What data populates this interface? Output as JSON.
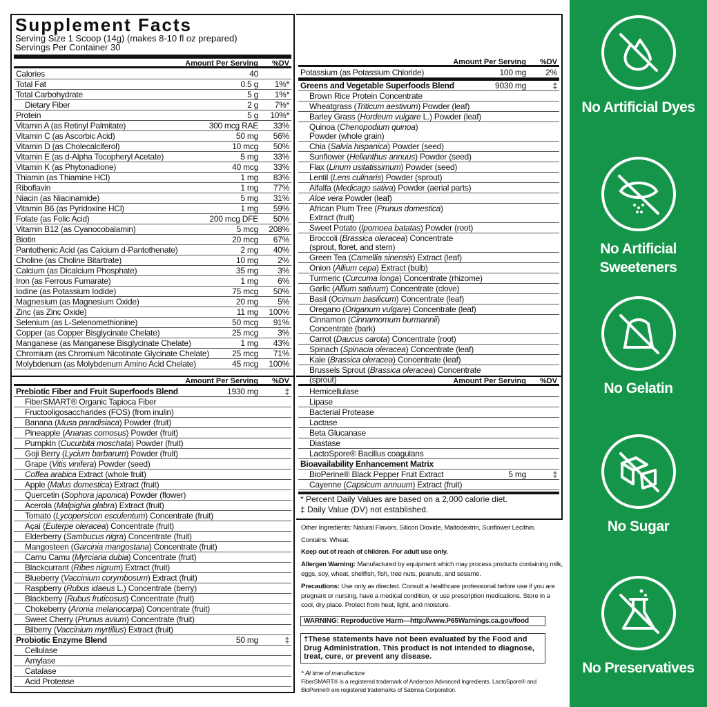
{
  "title": "Supplement Facts",
  "serving_size": "Serving Size 1 Scoop (14g) (makes 8-10 fl oz prepared)",
  "servings_per_container": "Servings Per Container 30",
  "col_amount": "Amount Per Serving",
  "col_dv": "%DV",
  "nutrients": [
    {
      "pre": "Calories",
      "amt": "40",
      "dv": ""
    },
    {
      "pre": "Total Fat",
      "amt": "0.5 g",
      "dv": "1%*"
    },
    {
      "pre": "Total Carbohydrate",
      "amt": "5 g",
      "dv": "1%*"
    },
    {
      "pre": "Dietary Fiber",
      "amt": "2 g",
      "dv": "7%*",
      "ind": 1
    },
    {
      "pre": "Protein",
      "amt": "5 g",
      "dv": "10%*"
    },
    {
      "pre": "Vitamin A (as Retinyl Palmitate)",
      "amt": "300 mcg RAE",
      "dv": "33%"
    },
    {
      "pre": "Vitamin C (as Ascorbic Acid)",
      "amt": "50 mg",
      "dv": "56%"
    },
    {
      "pre": "Vitamin D (as Cholecalciferol)",
      "amt": "10 mcg",
      "dv": "50%"
    },
    {
      "pre": "Vitamin E (as d-Alpha Tocopheryl Acetate)",
      "amt": "5 mg",
      "dv": "33%"
    },
    {
      "pre": "Vitamin K (as Phytonadione)",
      "amt": "40 mcg",
      "dv": "33%"
    },
    {
      "pre": "Thiamin (as Thiamine HCl)",
      "amt": "1 mg",
      "dv": "83%"
    },
    {
      "pre": "Riboflavin",
      "amt": "1 mg",
      "dv": "77%"
    },
    {
      "pre": "Niacin (as Niacinamide)",
      "amt": "5 mg",
      "dv": "31%"
    },
    {
      "pre": "Vitamin B6 (as Pyridoxine HCl)",
      "amt": "1 mg",
      "dv": "59%"
    },
    {
      "pre": "Folate (as Folic Acid)",
      "amt": "200 mcg DFE",
      "dv": "50%"
    },
    {
      "pre": "Vitamin B12 (as Cyanocobalamin)",
      "amt": "5 mcg",
      "dv": "208%"
    },
    {
      "pre": "Biotin",
      "amt": "20 mcg",
      "dv": "67%"
    },
    {
      "pre": "Pantothenic Acid (as Calcium d-Pantothenate)",
      "amt": "2 mg",
      "dv": "40%"
    },
    {
      "pre": "Choline (as Choline Bitartrate)",
      "amt": "10 mg",
      "dv": "2%"
    },
    {
      "pre": "Calcium (as Dicalcium Phosphate)",
      "amt": "35 mg",
      "dv": "3%"
    },
    {
      "pre": "Iron (as Ferrous Fumarate)",
      "amt": "1 mg",
      "dv": "6%"
    },
    {
      "pre": "Iodine (as Potassium Iodide)",
      "amt": "75 mcg",
      "dv": "50%"
    },
    {
      "pre": "Magnesium (as Magnesium Oxide)",
      "amt": "20 mg",
      "dv": "5%"
    },
    {
      "pre": "Zinc (as Zinc Oxide)",
      "amt": "11 mg",
      "dv": "100%"
    },
    {
      "pre": "Selenium (as L-Selenomethionine)",
      "amt": "50 mcg",
      "dv": "91%"
    },
    {
      "pre": "Copper (as Copper Bisglycinate Chelate)",
      "amt": "25 mcg",
      "dv": "3%"
    },
    {
      "pre": "Manganese (as Manganese Bisglycinate Chelate)",
      "amt": "1 mg",
      "dv": "43%"
    },
    {
      "pre": "Chromium (as Chromium Nicotinate Glycinate Chelate)",
      "amt": "25 mcg",
      "dv": "71%"
    },
    {
      "pre": "Molybdenum (as Molybdenum Amino Acid Chelate)",
      "amt": "45 mcg",
      "dv": "100%"
    }
  ],
  "greens": [
    {
      "pre": "Potassium (as Potassium Chloride)",
      "amt": "100 mg",
      "dv": "2%"
    },
    {
      "pre": "Greens and Vegetable Superfoods Blend",
      "amt": "9030 mg",
      "dv": "‡",
      "b": 1,
      "thick": 1
    },
    {
      "pre": "Brown Rice Protein Concentrate",
      "ind": 1
    },
    {
      "pre": "Wheatgrass (",
      "it": "Triticum aestivum",
      "post": ") Powder (leaf)",
      "ind": 1
    },
    {
      "pre": "Barley Grass (",
      "it": "Hordeum vulgare",
      "post": " L.) Powder (leaf)",
      "ind": 1
    },
    {
      "pre": "Quinoa (",
      "it": "Chenopodium quinoa",
      "post": ")\nPowder (whole grain)",
      "ind": 1,
      "two": 1
    },
    {
      "pre": "Chia (",
      "it": "Salvia hispanica",
      "post": ") Powder (seed)",
      "ind": 1
    },
    {
      "pre": "Sunflower (",
      "it": "Helianthus annuus",
      "post": ") Powder (seed)",
      "ind": 1
    },
    {
      "pre": "Flax (",
      "it": "Linum usitatissimum",
      "post": ") Powder (seed)",
      "ind": 1
    },
    {
      "pre": "Lentil (",
      "it": "Lens culinaris",
      "post": ") Powder (sprout)",
      "ind": 1
    },
    {
      "pre": "Alfalfa (",
      "it": "Medicago sativa",
      "post": ") Powder (aerial parts)",
      "ind": 1
    },
    {
      "pre": "",
      "it": "Aloe vera",
      "post": " Powder (leaf)",
      "ind": 1
    },
    {
      "pre": "African Plum Tree (",
      "it": "Prunus domestica",
      "post": ")\nExtract (fruit)",
      "ind": 1,
      "two": 1
    },
    {
      "pre": "Sweet Potato (",
      "it": "Ipomoea batatas",
      "post": ") Powder (root)",
      "ind": 1
    },
    {
      "pre": "Broccoli (",
      "it": "Brassica oleracea",
      "post": ") Concentrate\n(sprout, floret, and stem)",
      "ind": 1,
      "two": 1
    },
    {
      "pre": "Green Tea (",
      "it": "Camellia sinensis",
      "post": ") Extract (leaf)",
      "ind": 1
    },
    {
      "pre": "Onion (",
      "it": "Allium cepa",
      "post": ") Extract (bulb)",
      "ind": 1
    },
    {
      "pre": "Turmeric (",
      "it": "Curcuma longa",
      "post": ") Concentrate (rhizome)",
      "ind": 1
    },
    {
      "pre": "Garlic (",
      "it": "Allium sativum",
      "post": ") Concentrate (clove)",
      "ind": 1
    },
    {
      "pre": "Basil (",
      "it": "Ocimum basilicum",
      "post": ") Concentrate (leaf)",
      "ind": 1
    },
    {
      "pre": "Oregano (",
      "it": "Origanum vulgare",
      "post": ") Concentrate (leaf)",
      "ind": 1
    },
    {
      "pre": "Cinnamon (",
      "it": "Cinnamomum burmannii",
      "post": ")\nConcentrate (bark)",
      "ind": 1,
      "two": 1
    },
    {
      "pre": "Carrot (",
      "it": "Daucus carota",
      "post": ") Concentrate (root)",
      "ind": 1
    },
    {
      "pre": "Spinach (",
      "it": "Spinacia oleracea",
      "post": ") Concentrate (leaf)",
      "ind": 1
    },
    {
      "pre": "Kale (",
      "it": "Brassica oleracea",
      "post": ") Concentrate (leaf)",
      "ind": 1
    },
    {
      "pre": "Brussels Sprout (",
      "it": "Brassica oleracea",
      "post": ") Concentrate (sprout)",
      "ind": 1
    }
  ],
  "prebiotic": [
    {
      "pre": "Prebiotic Fiber and Fruit Superfoods Blend",
      "amt": "1930 mg",
      "dv": "‡",
      "b": 1
    },
    {
      "pre": "FiberSMART® Organic Tapioca Fiber",
      "ind": 1
    },
    {
      "pre": "Fructooligosaccharides (FOS) (from inulin)",
      "ind": 1
    },
    {
      "pre": "Banana (",
      "it": "Musa paradisiaca",
      "post": ") Powder (fruit)",
      "ind": 1
    },
    {
      "pre": "Pineapple (",
      "it": "Ananas comosus",
      "post": ") Powder (fruit)",
      "ind": 1
    },
    {
      "pre": "Pumpkin (",
      "it": "Cucurbita moschata",
      "post": ") Powder (fruit)",
      "ind": 1
    },
    {
      "pre": "Goji Berry (",
      "it": "Lycium barbarum",
      "post": ") Powder (fruit)",
      "ind": 1
    },
    {
      "pre": "Grape (",
      "it": "Vitis vinifera",
      "post": ") Powder (seed)",
      "ind": 1
    },
    {
      "pre": "",
      "it": "Coffea arabica",
      "post": " Extract (whole fruit)",
      "ind": 1
    },
    {
      "pre": "Apple (",
      "it": "Malus domestica",
      "post": ") Extract (fruit)",
      "ind": 1
    },
    {
      "pre": "Quercetin (",
      "it": "Sophora japonica",
      "post": ") Powder (flower)",
      "ind": 1
    },
    {
      "pre": "Acerola (",
      "it": "Malpighia glabra",
      "post": ") Extract (fruit)",
      "ind": 1
    },
    {
      "pre": "Tomato (",
      "it": "Lycopersicon esculentum",
      "post": ") Concentrate (fruit)",
      "ind": 1
    },
    {
      "pre": "Açaí (",
      "it": "Euterpe oleracea",
      "post": ") Concentrate (fruit)",
      "ind": 1
    },
    {
      "pre": "Elderberry (",
      "it": "Sambucus nigra",
      "post": ") Concentrate (fruit)",
      "ind": 1
    },
    {
      "pre": "Mangosteen (",
      "it": "Garcinia mangostana",
      "post": ") Concentrate (fruit)",
      "ind": 1
    },
    {
      "pre": "Camu Camu (",
      "it": "Myrciaria dubia",
      "post": ") Concentrate (fruit)",
      "ind": 1
    },
    {
      "pre": "Blackcurrant (",
      "it": "Ribes nigrum",
      "post": ") Extract (fruit)",
      "ind": 1
    },
    {
      "pre": "Blueberry (",
      "it": "Vaccinium corymbosum",
      "post": ") Extract (fruit)",
      "ind": 1
    },
    {
      "pre": "Raspberry (",
      "it": "Rubus idaeus",
      "post": " L.) Concentrate (berry)",
      "ind": 1
    },
    {
      "pre": "Blackberry (",
      "it": "Rubus fruticosus",
      "post": ") Concentrate (fruit)",
      "ind": 1
    },
    {
      "pre": "Chokeberry (",
      "it": "Aronia melanocarpa",
      "post": ") Concentrate (fruit)",
      "ind": 1
    },
    {
      "pre": "Sweet Cherry (",
      "it": "Prunus avium",
      "post": ") Concentrate (fruit)",
      "ind": 1
    },
    {
      "pre": "Bilberry (",
      "it": "Vaccinium myrtillus",
      "post": ") Extract (fruit)",
      "ind": 1
    },
    {
      "pre": "Probiotic Enzyme Blend",
      "amt": "50 mg",
      "dv": "‡",
      "b": 1
    },
    {
      "pre": "Cellulase",
      "ind": 1
    },
    {
      "pre": "Amylase",
      "ind": 1
    },
    {
      "pre": "Catalase",
      "ind": 1
    },
    {
      "pre": "Acid Protease",
      "ind": 1
    }
  ],
  "enzymes": [
    {
      "pre": "Hemicellulase",
      "ind": 1
    },
    {
      "pre": "Lipase",
      "ind": 1
    },
    {
      "pre": "Bacterial Protease",
      "ind": 1
    },
    {
      "pre": "Lactase",
      "ind": 1
    },
    {
      "pre": "Beta Glucanase",
      "ind": 1
    },
    {
      "pre": "Diastase",
      "ind": 1
    },
    {
      "pre": "LactoSpore® Bacillus coagulans",
      "ind": 1
    },
    {
      "pre": "Bioavailability Enhancement Matrix",
      "b": 1
    },
    {
      "pre": "BioPerine® Black Pepper Fruit Extract",
      "amt": "5 mg",
      "dv": "‡",
      "ind": 1
    },
    {
      "pre": "Cayenne (",
      "it": "Capsicum annuum",
      "post": ") Extract (fruit)",
      "ind": 1
    }
  ],
  "footnote_dv": "* Percent Daily Values are based on a 2,000 calorie diet.",
  "footnote_na": "‡ Daily Value (DV) not established.",
  "other_ingredients": "Other Ingredients: Natural Flavors, Silicon Dioxide, Maltodextrin, Sunflower Lecithin.",
  "contains": "Contains: Wheat.",
  "keep_out": "Keep out of reach of children. For adult use only.",
  "allergen_label": "Allergen Warning:",
  "allergen_text": " Manufactured by equipment which may process products containing milk, eggs, soy, wheat, shellfish, fish, tree nuts, peanuts, and sesame.",
  "precautions_label": "Precautions:",
  "precautions_text": " Use only as directed. Consult a healthcare professional before use if you are pregnant or nursing, have a medical condition, or use prescription medications. Store in a cool, dry place. Protect from heat, light, and moisture.",
  "p65_warning": "WARNING: Reproductive Harm—http://www.P65Warnings.ca.gov/food",
  "fda_disclaimer": "†These statements have not been evaluated by the Food and Drug Administration. This product is not intended to diagnose, treat, cure, or prevent any disease.",
  "time_note": "^ At time of manufacture",
  "trademarks": "FiberSMART® is a registered trademark of Anderson Advanced Ingredients. LactoSpore® and BioPerine® are registered trademarks of Sabinsa Corporation.",
  "brand_green": "#14954a",
  "badges": [
    {
      "icon": "drop-slash-icon",
      "label": "No Artificial Dyes"
    },
    {
      "icon": "sweetener-slash-icon",
      "label": "No Artificial Sweeteners"
    },
    {
      "icon": "gelatin-slash-icon",
      "label": "No Gelatin"
    },
    {
      "icon": "sugar-cube-slash-icon",
      "label": "No Sugar"
    },
    {
      "icon": "flask-slash-icon",
      "label": "No Preservatives"
    }
  ]
}
